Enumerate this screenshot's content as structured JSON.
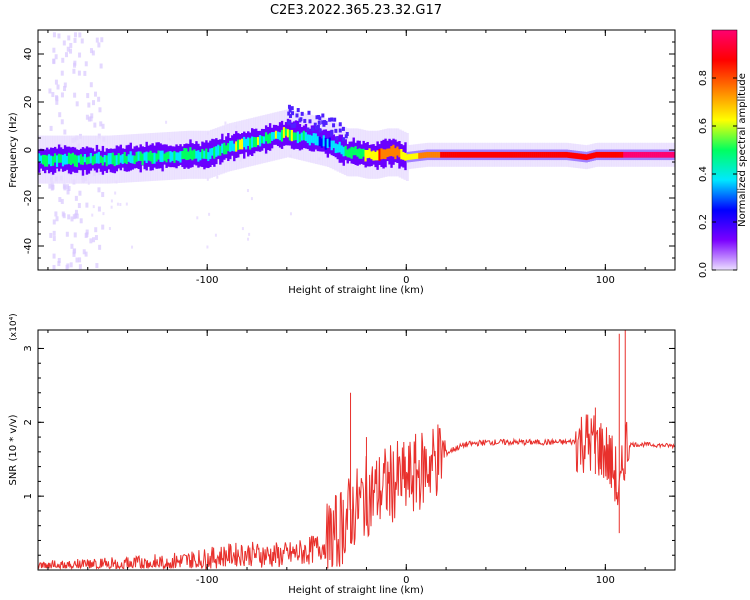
{
  "title": "C2E3.2022.365.23.32.G17",
  "colorbar": {
    "label": "Normalized spectral amplitude",
    "ticks": [
      "0.0",
      "0.2",
      "0.4",
      "0.6",
      "0.8"
    ],
    "tick_values": [
      0.0,
      0.2,
      0.4,
      0.6,
      0.8
    ],
    "colors": [
      "#ece0ff",
      "#7a00ff",
      "#0000ff",
      "#00e8ff",
      "#00ff60",
      "#ffff00",
      "#ff8000",
      "#ff0000",
      "#ff0070"
    ]
  },
  "chart_data": [
    {
      "type": "heatmap",
      "xlabel": "Height of straight line (km)",
      "ylabel": "Frequency (Hz)",
      "xlim": [
        -185,
        135
      ],
      "ylim": [
        -50,
        50
      ],
      "xticks": [
        -100,
        0,
        100
      ],
      "xtick_labels": [
        "-100",
        "0",
        "100"
      ],
      "yticks": [
        -40,
        -20,
        0,
        20,
        40
      ],
      "ytick_labels": [
        "-40",
        "-20",
        "0",
        "20",
        "40"
      ],
      "ridge": {
        "x": [
          -185,
          -170,
          -150,
          -130,
          -110,
          -100,
          -90,
          -80,
          -70,
          -60,
          -50,
          -45,
          -40,
          -35,
          -30,
          -25,
          -20,
          -15,
          -10,
          -5,
          0,
          10,
          20,
          40,
          60,
          80,
          90,
          95,
          100,
          105,
          110,
          120,
          135
        ],
        "freq": [
          -4,
          -4,
          -4,
          -3,
          -2,
          -2,
          1,
          3,
          5,
          7,
          5,
          4,
          3,
          1,
          -1,
          -1,
          -2,
          -2,
          -1,
          -1,
          -3,
          -2,
          -2,
          -2,
          -2,
          -2,
          -3,
          -2,
          -2,
          -2,
          -2,
          -2,
          -2
        ],
        "amplitude": [
          0.45,
          0.45,
          0.45,
          0.45,
          0.45,
          0.4,
          0.45,
          0.5,
          0.5,
          0.5,
          0.4,
          0.35,
          0.35,
          0.4,
          0.45,
          0.5,
          0.6,
          0.7,
          0.8,
          0.75,
          0.6,
          0.75,
          0.85,
          0.9,
          0.92,
          0.9,
          0.85,
          0.85,
          0.92,
          0.9,
          0.95,
          0.95,
          0.95
        ]
      }
    },
    {
      "type": "line",
      "xlabel": "Height of straight line (km)",
      "ylabel": "SNR (10 * v/v)",
      "y_multiplier_label": "(x10⁴)",
      "xlim": [
        -185,
        135
      ],
      "ylim": [
        0,
        3.25
      ],
      "xticks": [
        -100,
        0,
        100
      ],
      "xtick_labels": [
        "-100",
        "0",
        "100"
      ],
      "yticks": [
        1,
        2,
        3
      ],
      "ytick_labels": [
        "1",
        "2",
        "3"
      ],
      "series": [
        {
          "color": "#e8302c",
          "x": [
            -185,
            -170,
            -150,
            -130,
            -110,
            -100,
            -90,
            -80,
            -70,
            -60,
            -50,
            -40,
            -35,
            -30,
            -25,
            -20,
            -15,
            -10,
            -5,
            0,
            5,
            10,
            15,
            20,
            25,
            30,
            40,
            60,
            80,
            90,
            95,
            100,
            105,
            107,
            110,
            115,
            120,
            135
          ],
          "y": [
            0.05,
            0.05,
            0.06,
            0.08,
            0.12,
            0.15,
            0.2,
            0.22,
            0.2,
            0.2,
            0.25,
            0.35,
            0.5,
            0.7,
            0.85,
            1.0,
            1.05,
            1.15,
            1.2,
            1.2,
            1.3,
            1.4,
            1.5,
            1.58,
            1.65,
            1.7,
            1.73,
            1.73,
            1.73,
            1.75,
            1.7,
            1.6,
            1.3,
            0.9,
            1.7,
            1.7,
            1.7,
            1.68
          ]
        }
      ],
      "spikes": [
        {
          "x": -28,
          "y": 2.4
        },
        {
          "x": -20,
          "y": 1.8
        },
        {
          "x": 107,
          "y": 3.2
        },
        {
          "x": 110,
          "y": 3.25
        },
        {
          "x": 95,
          "y": 2.2
        }
      ]
    }
  ]
}
